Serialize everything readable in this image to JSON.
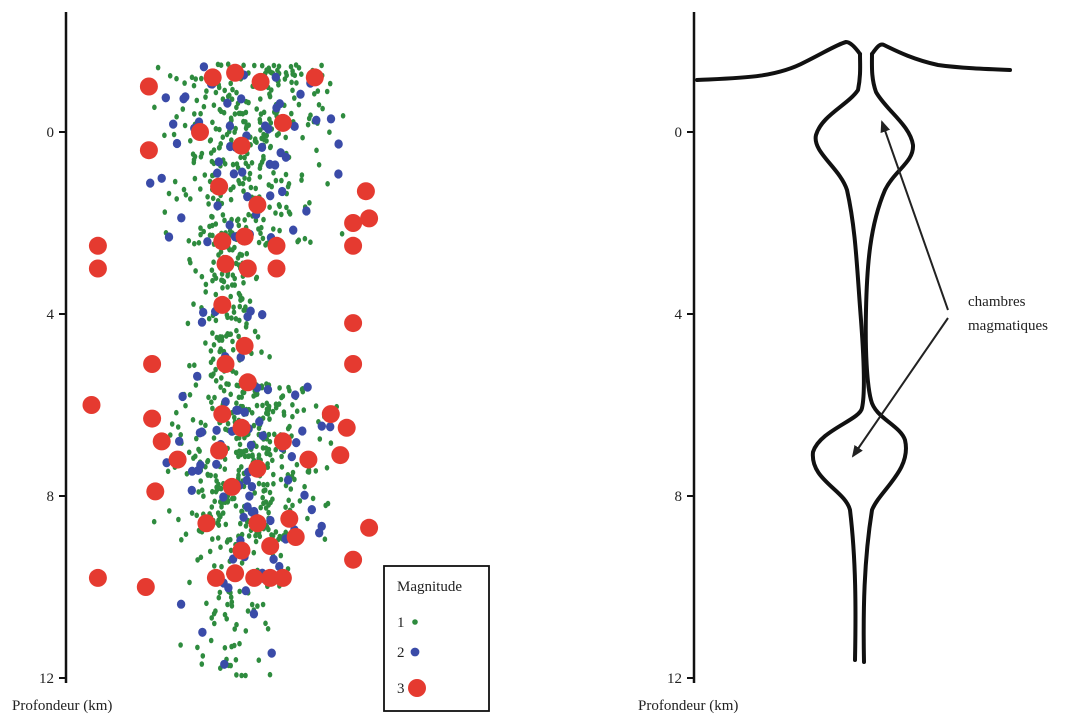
{
  "chart_data": [
    {
      "type": "scatter",
      "ylabel": "Profondeur (km)",
      "yticks": [
        "0",
        "4",
        "8",
        "12"
      ],
      "ylim": [
        -2.6,
        12
      ],
      "legend": {
        "title": "Magnitude",
        "position": "bottom-right",
        "entries": [
          {
            "label": "1",
            "color": "#2e8b3e"
          },
          {
            "label": "2",
            "color": "#3a4ba8"
          },
          {
            "label": "3",
            "color": "#e53a30"
          }
        ]
      },
      "colors": {
        "mag1": "#2e8b3e",
        "mag2": "#3a4ba8",
        "mag3": "#e53a30"
      },
      "clusters": [
        {
          "depth_from": -1.5,
          "depth_to": 2.5,
          "x_from": 0.22,
          "x_to": 0.92
        },
        {
          "depth_from": 2.5,
          "depth_to": 5.5,
          "x_from": 0.35,
          "x_to": 0.65
        },
        {
          "depth_from": 5.5,
          "depth_to": 9.0,
          "x_from": 0.25,
          "x_to": 0.9
        },
        {
          "depth_from": 9.0,
          "depth_to": 12.0,
          "x_from": 0.3,
          "x_to": 0.75
        }
      ],
      "large_events": [
        {
          "x": 0.26,
          "depth": -1.0
        },
        {
          "x": 0.46,
          "depth": -1.2
        },
        {
          "x": 0.53,
          "depth": -1.3
        },
        {
          "x": 0.61,
          "depth": -1.1
        },
        {
          "x": 0.78,
          "depth": -1.2
        },
        {
          "x": 0.26,
          "depth": 0.4
        },
        {
          "x": 0.42,
          "depth": 0.0
        },
        {
          "x": 0.55,
          "depth": 0.3
        },
        {
          "x": 0.68,
          "depth": -0.2
        },
        {
          "x": 0.48,
          "depth": 1.2
        },
        {
          "x": 0.6,
          "depth": 1.6
        },
        {
          "x": 0.94,
          "depth": 1.3
        },
        {
          "x": 0.95,
          "depth": 1.9
        },
        {
          "x": 0.9,
          "depth": 2.0
        },
        {
          "x": 0.1,
          "depth": 2.5
        },
        {
          "x": 0.49,
          "depth": 2.4
        },
        {
          "x": 0.56,
          "depth": 2.3
        },
        {
          "x": 0.66,
          "depth": 2.5
        },
        {
          "x": 0.9,
          "depth": 2.5
        },
        {
          "x": 0.1,
          "depth": 3.0
        },
        {
          "x": 0.5,
          "depth": 2.9
        },
        {
          "x": 0.57,
          "depth": 3.0
        },
        {
          "x": 0.66,
          "depth": 3.0
        },
        {
          "x": 0.49,
          "depth": 3.8
        },
        {
          "x": 0.9,
          "depth": 4.2
        },
        {
          "x": 0.56,
          "depth": 4.7
        },
        {
          "x": 0.27,
          "depth": 5.1
        },
        {
          "x": 0.5,
          "depth": 5.1
        },
        {
          "x": 0.9,
          "depth": 5.1
        },
        {
          "x": 0.57,
          "depth": 5.5
        },
        {
          "x": 0.08,
          "depth": 6.0
        },
        {
          "x": 0.27,
          "depth": 6.3
        },
        {
          "x": 0.49,
          "depth": 6.2
        },
        {
          "x": 0.83,
          "depth": 6.2
        },
        {
          "x": 0.3,
          "depth": 6.8
        },
        {
          "x": 0.55,
          "depth": 6.5
        },
        {
          "x": 0.68,
          "depth": 6.8
        },
        {
          "x": 0.88,
          "depth": 6.5
        },
        {
          "x": 0.35,
          "depth": 7.2
        },
        {
          "x": 0.48,
          "depth": 7.0
        },
        {
          "x": 0.6,
          "depth": 7.4
        },
        {
          "x": 0.76,
          "depth": 7.2
        },
        {
          "x": 0.86,
          "depth": 7.1
        },
        {
          "x": 0.28,
          "depth": 7.9
        },
        {
          "x": 0.52,
          "depth": 7.8
        },
        {
          "x": 0.44,
          "depth": 8.6
        },
        {
          "x": 0.6,
          "depth": 8.6
        },
        {
          "x": 0.7,
          "depth": 8.5
        },
        {
          "x": 0.95,
          "depth": 8.7
        },
        {
          "x": 0.55,
          "depth": 9.2
        },
        {
          "x": 0.64,
          "depth": 9.1
        },
        {
          "x": 0.72,
          "depth": 8.9
        },
        {
          "x": 0.9,
          "depth": 9.4
        },
        {
          "x": 0.1,
          "depth": 9.8
        },
        {
          "x": 0.25,
          "depth": 10.0
        },
        {
          "x": 0.47,
          "depth": 9.8
        },
        {
          "x": 0.53,
          "depth": 9.7
        },
        {
          "x": 0.59,
          "depth": 9.8
        },
        {
          "x": 0.64,
          "depth": 9.8
        },
        {
          "x": 0.68,
          "depth": 9.8
        }
      ]
    },
    {
      "type": "diagram",
      "ylabel": "Profondeur (km)",
      "yticks": [
        "0",
        "4",
        "8",
        "12"
      ],
      "annotation": [
        "chambres",
        "magmatiques"
      ]
    }
  ]
}
